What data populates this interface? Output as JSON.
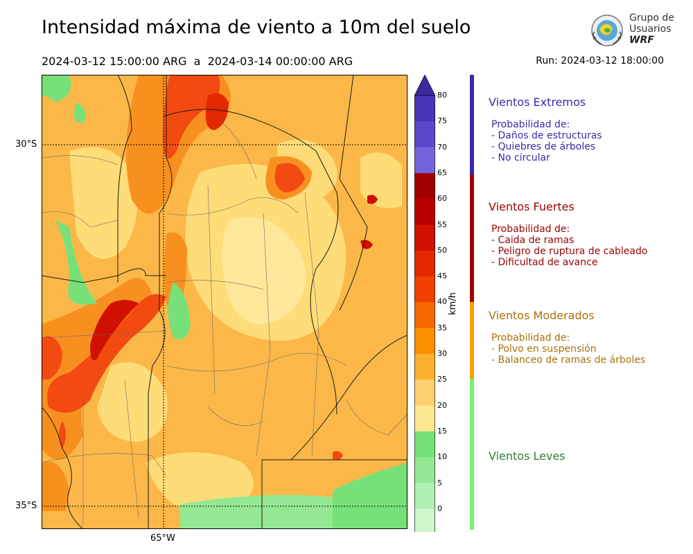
{
  "header": {
    "title": "Intensidad máxima de viento a 10m del suelo",
    "period": "2024-03-12 15:00:00 ARG  a  2024-03-14 00:00:00 ARG",
    "run": "Run: 2024-03-12 18:00:00"
  },
  "logo": {
    "line1": "Grupo de",
    "line2": "Usuarios",
    "line3": "WRF",
    "icon": "globe-emblem-icon"
  },
  "map": {
    "lat_labels": [
      "30°S",
      "35°S"
    ],
    "lon_labels": [
      "65°W"
    ]
  },
  "colorbar": {
    "units": "km/h",
    "ticks": [
      "80",
      "75",
      "70",
      "65",
      "60",
      "55",
      "50",
      "45",
      "40",
      "35",
      "30",
      "25",
      "20",
      "15",
      "10",
      "5",
      "0"
    ],
    "colors": [
      "#3b2aa0",
      "#4636b8",
      "#5848cc",
      "#7464dc",
      "#a00000",
      "#b80000",
      "#d01000",
      "#e42800",
      "#f24000",
      "#f86800",
      "#fa9000",
      "#fbb030",
      "#fdd070",
      "#ffe890",
      "#78e078",
      "#94e894",
      "#b0f0b0",
      "#cdf6cd",
      "#e8fce8"
    ]
  },
  "categories": [
    {
      "title": "Vientos Extremos",
      "color": "#3a2aa8",
      "bar": "#3a2aa8",
      "lines": [
        "Probabilidad de:",
        "- Daños de estructuras",
        "- Quiebres de árboles",
        "- No circular"
      ]
    },
    {
      "title": "Vientos Fuertes",
      "color": "#9a0000",
      "bar": "#a00000",
      "lines": [
        "Probabilidad de:",
        "- Caida de ramas",
        "- Peligro de ruptura de cableado",
        "- Dificultad de avance"
      ]
    },
    {
      "title": "Vientos Moderados",
      "color": "#a8700c",
      "bar": "#f8a000",
      "lines": [
        "Probabilidad de:",
        "- Polvo en suspensión",
        "- Balanceo de ramas de árboles"
      ]
    },
    {
      "title": "Vientos Leves",
      "color": "#2e7d32",
      "bar": "#78f078",
      "lines": []
    }
  ]
}
